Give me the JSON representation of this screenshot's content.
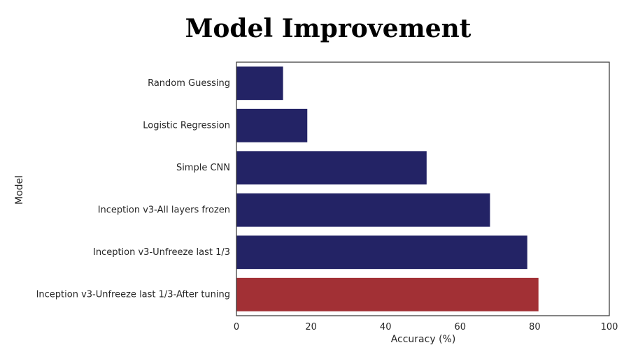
{
  "chart_data": {
    "type": "bar",
    "orientation": "horizontal",
    "title": "Model Improvement",
    "xlabel": "Accuracy (%)",
    "ylabel": "Model",
    "xlim": [
      0,
      100
    ],
    "xticks": [
      0,
      20,
      40,
      60,
      80,
      100
    ],
    "grid": false,
    "categories": [
      "Random Guessing",
      "Logistic Regression",
      "Simple CNN",
      "Inception v3-All layers frozen",
      "Inception v3-Unfreeze last 1/3",
      "Inception v3-Unfreeze last 1/3-After tuning"
    ],
    "values": [
      12.5,
      19,
      51,
      68,
      78,
      81
    ],
    "colors": [
      "#232365",
      "#232365",
      "#232365",
      "#232365",
      "#232365",
      "#a23035"
    ]
  }
}
